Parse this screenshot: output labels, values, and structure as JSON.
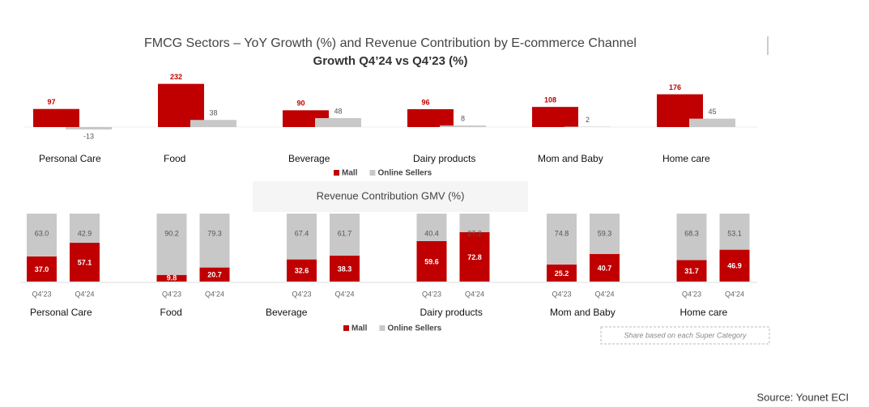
{
  "chart_data": [
    {
      "type": "bar",
      "title": "FMCG Sectors – YoY Growth (%) and Revenue Contribution by E-commerce Channel",
      "subtitle": "Growth Q4’24 vs Q4’23 (%)",
      "categories": [
        "Personal Care",
        "Food",
        "Beverage",
        "Dairy products",
        "Mom and Baby",
        "Home care"
      ],
      "series": [
        {
          "name": "Mall",
          "color": "#c00000",
          "values": [
            97,
            232,
            90,
            96,
            108,
            176
          ]
        },
        {
          "name": "Online Sellers",
          "color": "#c8c8c8",
          "values": [
            -13,
            38,
            48,
            8,
            2,
            45
          ]
        }
      ]
    },
    {
      "type": "stacked_bar",
      "title": "Revenue Contribution GMV (%)",
      "groups": [
        "Personal Care",
        "Food",
        "Beverage",
        "Dairy products",
        "Mom and Baby",
        "Home care"
      ],
      "categories": [
        "Q4’23",
        "Q4’24",
        "Q4’23",
        "Q4’24",
        "Q4’23",
        "Q4’24",
        "Q4’23",
        "Q4’24",
        "Q4’23",
        "Q4’24",
        "Q4’23",
        "Q4’24"
      ],
      "series": [
        {
          "name": "Mall",
          "color": "#c00000",
          "values": [
            37.0,
            57.1,
            9.8,
            20.7,
            32.6,
            38.3,
            59.6,
            72.8,
            25.2,
            40.7,
            31.7,
            46.9
          ],
          "value_labels": [
            "37.0",
            "57.1",
            "9.8",
            "20.7",
            "32.6",
            "38.3",
            "59.6",
            "72.8",
            "25.2",
            "40.7",
            "31.7",
            "46.9"
          ]
        },
        {
          "name": "Online Sellers",
          "color": "#c8c8c8",
          "values": [
            63.0,
            42.9,
            90.2,
            79.3,
            67.4,
            61.7,
            40.4,
            27.2,
            74.8,
            59.3,
            68.3,
            53.1
          ],
          "value_labels": [
            "63.0",
            "42.9",
            "90.2",
            "79.3",
            "67.4",
            "61.7",
            "40.4",
            "27.2",
            "74.8",
            "59.3",
            "68.3",
            "53.1"
          ]
        }
      ],
      "note": "Share based on each Super Category"
    }
  ],
  "source": "Source: Younet ECI"
}
